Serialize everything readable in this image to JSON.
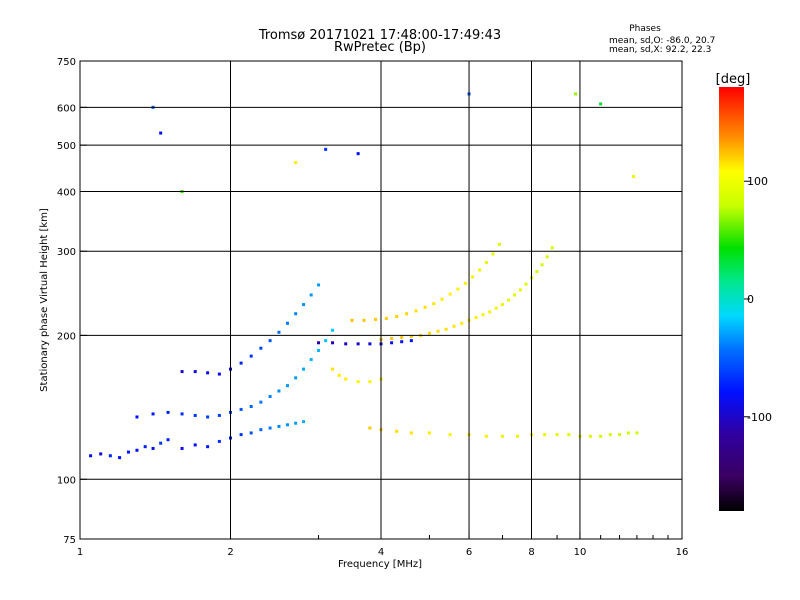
{
  "header": {
    "title_line1": "Tromsø 20171021 17:48:00-17:49:43",
    "title_line2": "RwPretec (Bp)",
    "phases_title": "Phases",
    "phases_o": "mean, sd,O: -86.0, 20.7",
    "phases_x": "mean, sd,X:  92.2, 22.3"
  },
  "colorbar": {
    "label": "[deg]",
    "ticks": [
      {
        "label": "100",
        "value": 100
      },
      {
        "label": "0",
        "value": 0
      },
      {
        "label": "-100",
        "value": -100
      }
    ],
    "range": [
      -180,
      180
    ]
  },
  "chart_data": {
    "type": "scatter",
    "xlabel": "Frequency [MHz]",
    "ylabel": "Stationary phase Virtual Height [km]",
    "x_scale": "log",
    "y_scale": "log",
    "xlim": [
      1,
      16
    ],
    "ylim": [
      75,
      750
    ],
    "x_ticks": [
      1,
      2,
      4,
      6,
      8,
      10,
      16
    ],
    "x_tick_labels": [
      "1",
      "2",
      "4",
      "6",
      "8",
      "10",
      "16"
    ],
    "y_ticks": [
      75,
      100,
      200,
      300,
      400,
      500,
      600,
      750
    ],
    "y_tick_labels": [
      "75",
      "100",
      "200",
      "300",
      "400",
      "500",
      "600",
      "750"
    ],
    "grid": true,
    "colorscale": "rainbow (black-purple-blue-cyan-green-yellow-red)",
    "series": [
      {
        "points": [
          [
            1.05,
            112,
            -105
          ],
          [
            1.1,
            113,
            -110
          ],
          [
            1.15,
            112,
            -95
          ],
          [
            1.2,
            111,
            -100
          ],
          [
            1.25,
            114,
            -98
          ],
          [
            1.3,
            115,
            -102
          ],
          [
            1.35,
            117,
            -96
          ],
          [
            1.4,
            116,
            -104
          ],
          [
            1.45,
            119,
            -90
          ],
          [
            1.5,
            121,
            -95
          ]
        ]
      },
      {
        "points": [
          [
            1.6,
            116,
            -105
          ],
          [
            1.7,
            118,
            -100
          ],
          [
            1.8,
            117,
            -98
          ],
          [
            1.9,
            120,
            -92
          ],
          [
            2.0,
            122,
            -95
          ],
          [
            2.1,
            124,
            -90
          ],
          [
            2.2,
            125,
            -80
          ],
          [
            2.3,
            127,
            -75
          ],
          [
            2.4,
            128,
            -70
          ],
          [
            2.5,
            129,
            -65
          ],
          [
            2.6,
            130,
            -60
          ],
          [
            2.7,
            131,
            -55
          ],
          [
            2.8,
            132,
            -50
          ]
        ]
      },
      {
        "points": [
          [
            1.3,
            135,
            -100
          ],
          [
            1.4,
            137,
            -98
          ],
          [
            1.5,
            138,
            -95
          ],
          [
            1.6,
            137,
            -92
          ],
          [
            1.7,
            136,
            -90
          ],
          [
            1.8,
            135,
            -88
          ],
          [
            1.9,
            136,
            -86
          ],
          [
            2.0,
            138,
            -84
          ],
          [
            2.1,
            140,
            -80
          ],
          [
            2.2,
            142,
            -76
          ],
          [
            2.3,
            145,
            -70
          ],
          [
            2.4,
            149,
            -66
          ],
          [
            2.5,
            153,
            -62
          ],
          [
            2.6,
            157,
            -58
          ],
          [
            2.7,
            163,
            -55
          ],
          [
            2.8,
            170,
            -50
          ],
          [
            2.9,
            178,
            -46
          ],
          [
            3.0,
            186,
            -42
          ],
          [
            3.1,
            195,
            -40
          ],
          [
            3.2,
            205,
            -36
          ]
        ]
      },
      {
        "points": [
          [
            1.6,
            168,
            -110
          ],
          [
            1.7,
            168,
            -108
          ],
          [
            1.8,
            167,
            -106
          ],
          [
            1.9,
            166,
            -104
          ],
          [
            2.0,
            170,
            -100
          ],
          [
            2.1,
            175,
            -95
          ],
          [
            2.2,
            181,
            -90
          ],
          [
            2.3,
            188,
            -85
          ],
          [
            2.4,
            195,
            -80
          ],
          [
            2.5,
            203,
            -75
          ],
          [
            2.6,
            212,
            -70
          ],
          [
            2.7,
            222,
            -65
          ],
          [
            2.8,
            232,
            -60
          ],
          [
            2.9,
            243,
            -58
          ],
          [
            3.0,
            255,
            -55
          ]
        ]
      },
      {
        "points": [
          [
            3.0,
            193,
            -120
          ],
          [
            3.2,
            193,
            -118
          ],
          [
            3.4,
            192,
            -115
          ],
          [
            3.6,
            192,
            -112
          ],
          [
            3.8,
            192,
            -110
          ],
          [
            4.0,
            192,
            -108
          ],
          [
            4.2,
            193,
            -106
          ],
          [
            4.4,
            194,
            -104
          ],
          [
            4.6,
            195,
            -100
          ]
        ]
      },
      {
        "points": [
          [
            4.0,
            196,
            120
          ],
          [
            4.2,
            197,
            118
          ],
          [
            4.4,
            198,
            116
          ],
          [
            4.6,
            199,
            114
          ],
          [
            4.8,
            200,
            112
          ],
          [
            5.0,
            202,
            110
          ],
          [
            5.2,
            204,
            108
          ],
          [
            5.4,
            206,
            106
          ],
          [
            5.6,
            209,
            104
          ],
          [
            5.8,
            212,
            102
          ],
          [
            6.0,
            215,
            100
          ],
          [
            6.2,
            218,
            98
          ],
          [
            6.4,
            221,
            96
          ],
          [
            6.6,
            224,
            94
          ],
          [
            6.8,
            228,
            92
          ],
          [
            7.0,
            232,
            90
          ],
          [
            7.2,
            237,
            88
          ],
          [
            7.4,
            243,
            86
          ],
          [
            7.6,
            249,
            84
          ],
          [
            7.8,
            256,
            82
          ],
          [
            8.0,
            264,
            80
          ],
          [
            8.2,
            272,
            78
          ],
          [
            8.4,
            281,
            76
          ],
          [
            8.6,
            292,
            74
          ],
          [
            8.8,
            305,
            72
          ]
        ]
      },
      {
        "points": [
          [
            3.5,
            215,
            120
          ],
          [
            3.7,
            215,
            118
          ],
          [
            3.9,
            216,
            116
          ],
          [
            4.1,
            217,
            114
          ],
          [
            4.3,
            219,
            112
          ],
          [
            4.5,
            222,
            110
          ],
          [
            4.7,
            225,
            108
          ],
          [
            4.9,
            229,
            106
          ],
          [
            5.1,
            233,
            104
          ],
          [
            5.3,
            238,
            102
          ],
          [
            5.5,
            244,
            100
          ],
          [
            5.7,
            250,
            98
          ],
          [
            5.9,
            257,
            96
          ],
          [
            6.1,
            265,
            94
          ],
          [
            6.3,
            274,
            92
          ],
          [
            6.5,
            284,
            90
          ],
          [
            6.7,
            296,
            88
          ],
          [
            6.9,
            310,
            86
          ]
        ]
      },
      {
        "points": [
          [
            3.2,
            170,
            105
          ],
          [
            3.3,
            165,
            102
          ],
          [
            3.4,
            162,
            100
          ],
          [
            3.6,
            160,
            98
          ],
          [
            3.8,
            160,
            96
          ],
          [
            4.0,
            162,
            94
          ]
        ]
      },
      {
        "points": [
          [
            3.8,
            128,
            115
          ],
          [
            4.0,
            127,
            112
          ],
          [
            4.3,
            126,
            108
          ],
          [
            4.6,
            125,
            105
          ],
          [
            5.0,
            125,
            102
          ],
          [
            5.5,
            124,
            100
          ],
          [
            6.0,
            124,
            98
          ],
          [
            6.5,
            123,
            96
          ],
          [
            7.0,
            123,
            94
          ],
          [
            7.5,
            123,
            92
          ],
          [
            8.0,
            124,
            90
          ],
          [
            8.5,
            124,
            88
          ],
          [
            9.0,
            124,
            86
          ],
          [
            9.5,
            124,
            84
          ],
          [
            10.0,
            123,
            82
          ],
          [
            10.5,
            123,
            80
          ],
          [
            11.0,
            123,
            78
          ],
          [
            11.5,
            124,
            76
          ],
          [
            12.0,
            124,
            74
          ],
          [
            12.5,
            125,
            72
          ],
          [
            13.0,
            125,
            70
          ]
        ]
      },
      {
        "points": [
          [
            1.4,
            600,
            -80
          ],
          [
            1.45,
            530,
            -100
          ],
          [
            1.6,
            400,
            40
          ],
          [
            2.7,
            460,
            100
          ],
          [
            3.1,
            490,
            -90
          ],
          [
            3.6,
            480,
            -100
          ],
          [
            6.0,
            640,
            -80
          ],
          [
            9.8,
            640,
            60
          ],
          [
            11.0,
            610,
            20
          ],
          [
            12.8,
            430,
            90
          ]
        ]
      }
    ]
  }
}
